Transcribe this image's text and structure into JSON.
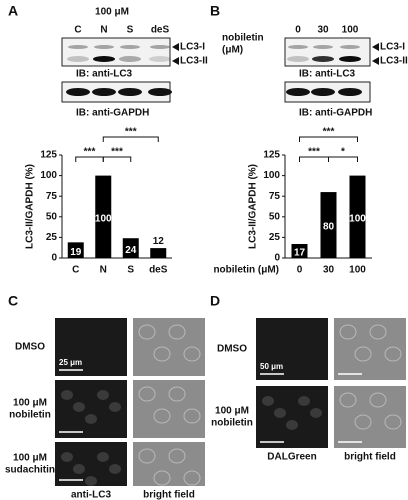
{
  "panel_labels": [
    "A",
    "B",
    "C",
    "D"
  ],
  "blot_a": {
    "treatment": [
      "100 μM"
    ],
    "lanes": [
      "C",
      "N",
      "S",
      "deS"
    ],
    "bands": [
      "LC3-I",
      "LC3-II"
    ],
    "ib": [
      "IB: anti-LC3",
      "IB: anti-GAPDH"
    ]
  },
  "blot_b": {
    "treatment": [
      "nobiletin",
      "(μM)"
    ],
    "lanes": [
      "0",
      "30",
      "100"
    ],
    "bands": [
      "LC3-I",
      "LC3-II"
    ],
    "ib": [
      "IB: anti-LC3",
      "IB: anti-GAPDH"
    ]
  },
  "chart_data": [
    {
      "type": "bar",
      "categories": [
        "C",
        "N",
        "S",
        "deS"
      ],
      "values": [
        19,
        100,
        24,
        12
      ],
      "ylabel": "LC3-II/GAPDH (%)",
      "ylim": [
        0,
        125
      ],
      "yticks": [
        0,
        25,
        50,
        75,
        100,
        125
      ],
      "color": "#000000",
      "significance": [
        "***",
        "***",
        "***"
      ]
    },
    {
      "type": "bar",
      "categories": [
        "0",
        "30",
        "100"
      ],
      "values": [
        17,
        80,
        100
      ],
      "xlabel": "nobiletin (μM)",
      "ylabel": "LC3-II/GAPDH (%)",
      "ylim": [
        0,
        125
      ],
      "yticks": [
        0,
        25,
        50,
        75,
        100,
        125
      ],
      "color": "#000000",
      "significance": [
        "***",
        "*",
        "***"
      ]
    }
  ],
  "imaging_c": {
    "rows": [
      [
        "DMSO"
      ],
      [
        "100 μM",
        "nobiletin"
      ],
      [
        "100 μM",
        "sudachitin"
      ]
    ],
    "columns": [
      "anti-LC3",
      "bright field"
    ],
    "scale": "25 μm"
  },
  "imaging_d": {
    "rows": [
      [
        "DMSO"
      ],
      [
        "100 μM",
        "nobiletin"
      ]
    ],
    "columns": [
      "DALGreen",
      "bright field"
    ],
    "scale": "50 μm"
  }
}
